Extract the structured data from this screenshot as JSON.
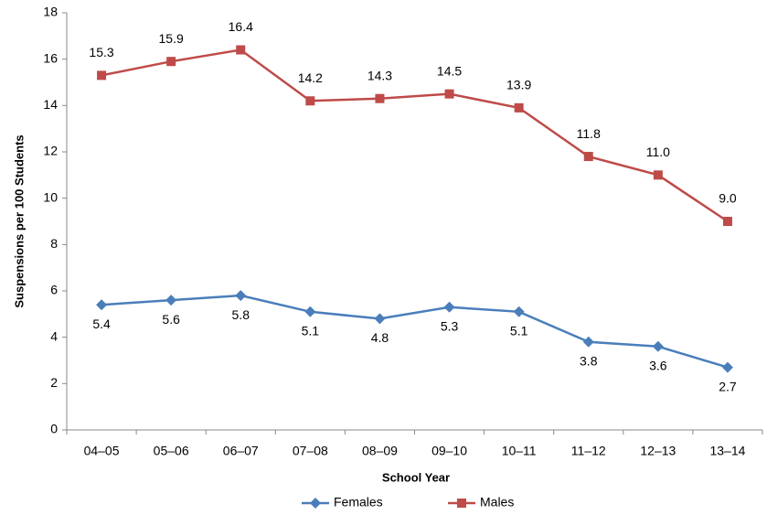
{
  "chart_data": {
    "type": "line",
    "x_label": "School Year",
    "y_label": "Suspensions per 100 Students",
    "categories": [
      "04–05",
      "05–06",
      "06–07",
      "07–08",
      "08–09",
      "09–10",
      "10–11",
      "11–12",
      "12–13",
      "13–14"
    ],
    "series": [
      {
        "name": "Females",
        "color": "#4a7ebb",
        "marker": "diamond",
        "label_position": "below",
        "values": [
          5.4,
          5.6,
          5.8,
          5.1,
          4.8,
          5.3,
          5.1,
          3.8,
          3.6,
          2.7
        ],
        "value_labels": [
          "5.4",
          "5.6",
          "5.8",
          "5.1",
          "4.8",
          "5.3",
          "5.1",
          "3.8",
          "3.6",
          "2.7"
        ]
      },
      {
        "name": "Males",
        "color": "#be4b48",
        "marker": "square",
        "label_position": "above",
        "values": [
          15.3,
          15.9,
          16.4,
          14.2,
          14.3,
          14.5,
          13.9,
          11.8,
          11,
          9
        ],
        "value_labels": [
          "15.3",
          "15.9",
          "16.4",
          "14.2",
          "14.3",
          "14.5",
          "13.9",
          "11.8",
          "11.0",
          "9.0"
        ]
      }
    ],
    "ylim": [
      0,
      18
    ],
    "yticks": [
      0,
      2,
      4,
      6,
      8,
      10,
      12,
      14,
      16,
      18
    ],
    "grid": false,
    "legend": "bottom"
  }
}
